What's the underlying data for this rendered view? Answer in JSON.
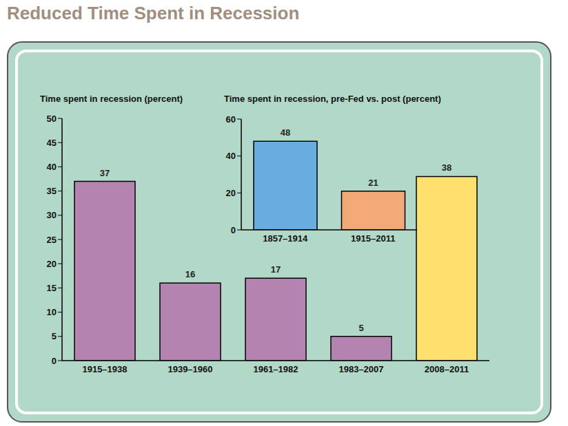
{
  "title": "Reduced Time Spent in Recession",
  "chart_data": [
    {
      "type": "bar",
      "y_label": "Time spent in recession (percent)",
      "categories": [
        "1915–1938",
        "1939–1960",
        "1961–1982",
        "1983–2007",
        "2008–2011"
      ],
      "values": [
        37,
        16,
        17,
        5,
        38
      ],
      "colors": [
        "#b484b0",
        "#b484b0",
        "#b484b0",
        "#b484b0",
        "#ffdf6e"
      ],
      "ylim": [
        0,
        50
      ],
      "yticks": [
        0,
        5,
        10,
        15,
        20,
        25,
        30,
        35,
        40,
        45,
        50
      ],
      "data_labels": true,
      "grid": false
    },
    {
      "type": "bar",
      "title": "Time spent in recession, pre-Fed vs. post (percent)",
      "categories": [
        "1857–1914",
        "1915–2011"
      ],
      "values": [
        48,
        21
      ],
      "colors": [
        "#68ade0",
        "#f2a877"
      ],
      "ylim": [
        0,
        60
      ],
      "yticks": [
        0,
        20,
        40,
        60
      ],
      "data_labels": true,
      "grid": false
    }
  ]
}
